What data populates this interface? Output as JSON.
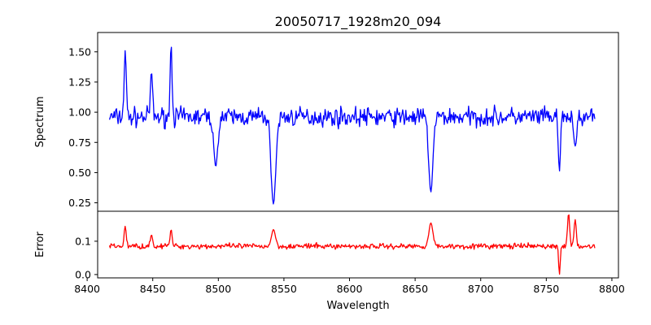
{
  "chart_data": {
    "type": "line",
    "title": "20050717_1928m20_094",
    "xlabel": "Wavelength",
    "x_range": [
      8417,
      8787
    ],
    "xlim": [
      8408,
      8805
    ],
    "x_ticks": [
      8400,
      8450,
      8500,
      8550,
      8600,
      8650,
      8700,
      8750,
      8800
    ],
    "x_tick_labels": [
      "8400",
      "8450",
      "8500",
      "8550",
      "8600",
      "8650",
      "8700",
      "8750",
      "8800"
    ],
    "panels": [
      {
        "name": "spectrum",
        "ylabel": "Spectrum",
        "ylim": [
          0.18,
          1.66
        ],
        "y_ticks": [
          0.25,
          0.5,
          0.75,
          1.0,
          1.25,
          1.5
        ],
        "y_tick_labels": [
          "0.25",
          "0.50",
          "0.75",
          "1.00",
          "1.25",
          "1.50"
        ],
        "color": "#0000ff",
        "baseline": 0.96,
        "noise": 0.085,
        "features": [
          {
            "x": 8429,
            "y": 1.51,
            "width": 0.8
          },
          {
            "x": 8449,
            "y": 1.34,
            "width": 0.8
          },
          {
            "x": 8464,
            "y": 1.57,
            "width": 0.7
          },
          {
            "x": 8498,
            "y": 0.55,
            "width": 1.5
          },
          {
            "x": 8542,
            "y": 0.24,
            "width": 1.8
          },
          {
            "x": 8662,
            "y": 0.34,
            "width": 1.6
          },
          {
            "x": 8760,
            "y": 0.51,
            "width": 0.8
          },
          {
            "x": 8772,
            "y": 0.72,
            "width": 1.2
          }
        ]
      },
      {
        "name": "error",
        "ylabel": "Error",
        "ylim": [
          -0.01,
          0.19
        ],
        "y_ticks": [
          0.0,
          0.1
        ],
        "y_tick_labels": [
          "0.0",
          "0.1"
        ],
        "color": "#ff0000",
        "baseline": 0.085,
        "noise": 0.009,
        "features": [
          {
            "x": 8429,
            "y": 0.145,
            "width": 0.8
          },
          {
            "x": 8449,
            "y": 0.12,
            "width": 0.8
          },
          {
            "x": 8464,
            "y": 0.135,
            "width": 0.8
          },
          {
            "x": 8542,
            "y": 0.135,
            "width": 1.5
          },
          {
            "x": 8662,
            "y": 0.155,
            "width": 1.5
          },
          {
            "x": 8760,
            "y": 0.0,
            "width": 0.6
          },
          {
            "x": 8767,
            "y": 0.185,
            "width": 0.8
          },
          {
            "x": 8772,
            "y": 0.165,
            "width": 0.8
          }
        ]
      }
    ]
  }
}
